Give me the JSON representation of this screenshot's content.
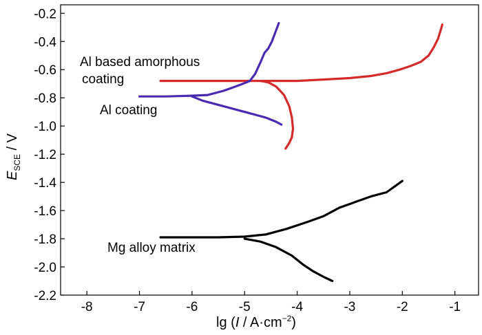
{
  "chart_data": {
    "type": "line",
    "title": "",
    "xlabel": "lg (I / A·cm⁻²)",
    "ylabel": "E_SCE / V",
    "xlabel_parts": {
      "prefix": "lg (",
      "italic": "I",
      "mid": " / A·cm",
      "sup": "−2",
      "suffix": ")"
    },
    "ylabel_parts": {
      "main": "E",
      "sub": "SCE",
      "rest": " / V"
    },
    "xlim": [
      -8.5,
      -0.55
    ],
    "ylim": [
      -2.2,
      -0.14
    ],
    "x_ticks": [
      -8,
      -7,
      -6,
      -5,
      -4,
      -3,
      -2,
      -1
    ],
    "y_ticks": [
      -0.2,
      -0.4,
      -0.6,
      -0.8,
      -1.0,
      -1.2,
      -1.4,
      -1.6,
      -1.8,
      -2.0,
      -2.2
    ],
    "x_tick_labels": [
      "-8",
      "-7",
      "-6",
      "-5",
      "-4",
      "-3",
      "-2",
      "-1"
    ],
    "y_tick_labels": [
      "-0.2",
      "-0.4",
      "-0.6",
      "-0.8",
      "-1.0",
      "-1.2",
      "-1.4",
      "-1.6",
      "-1.8",
      "-2.0",
      "-2.2"
    ],
    "grid": false,
    "annotations": {
      "al_amorphous_line1": "Al based amorphous",
      "al_amorphous_line2": "coating",
      "al_coating": "Al coating",
      "mg_alloy": "Mg alloy matrix"
    },
    "series": [
      {
        "name": "Al based amorphous coating",
        "color": "#d42a2a",
        "x": [
          -6.6,
          -6.0,
          -5.5,
          -5.0,
          -4.7,
          -4.55,
          -4.4,
          -4.25,
          -4.15,
          -4.1,
          -4.08,
          -4.1,
          -4.15,
          -4.22
        ],
        "y": [
          -0.68,
          -0.68,
          -0.68,
          -0.68,
          -0.68,
          -0.69,
          -0.72,
          -0.78,
          -0.86,
          -0.94,
          -1.02,
          -1.08,
          -1.12,
          -1.16
        ],
        "x2": [
          -4.7,
          -4.0,
          -3.5,
          -3.0,
          -2.6,
          -2.3,
          -2.05,
          -1.85,
          -1.65,
          -1.5,
          -1.4,
          -1.32,
          -1.27,
          -1.24
        ],
        "y2": [
          -0.68,
          -0.68,
          -0.67,
          -0.66,
          -0.645,
          -0.625,
          -0.6,
          -0.575,
          -0.545,
          -0.5,
          -0.44,
          -0.38,
          -0.32,
          -0.28
        ]
      },
      {
        "name": "Al coating",
        "color": "#4a2ab0",
        "x": [
          -7.0,
          -6.5,
          -6.0,
          -5.7,
          -5.4,
          -5.1,
          -4.9,
          -4.8,
          -4.7,
          -4.62,
          -4.55,
          -4.48,
          -4.42,
          -4.38,
          -4.35
        ],
        "y": [
          -0.79,
          -0.79,
          -0.785,
          -0.78,
          -0.75,
          -0.71,
          -0.68,
          -0.63,
          -0.55,
          -0.48,
          -0.45,
          -0.4,
          -0.34,
          -0.3,
          -0.27
        ],
        "x2": [
          -6.0,
          -5.8,
          -5.5,
          -5.2,
          -4.9,
          -4.6,
          -4.4,
          -4.3
        ],
        "y2": [
          -0.79,
          -0.82,
          -0.85,
          -0.88,
          -0.91,
          -0.94,
          -0.97,
          -0.99
        ]
      },
      {
        "name": "Mg alloy matrix",
        "color": "#000000",
        "x": [
          -6.6,
          -6.0,
          -5.5,
          -5.0,
          -4.6,
          -4.2,
          -3.8,
          -3.5,
          -3.2,
          -2.9,
          -2.6,
          -2.3,
          -2.0
        ],
        "y": [
          -1.79,
          -1.79,
          -1.79,
          -1.785,
          -1.77,
          -1.73,
          -1.68,
          -1.64,
          -1.58,
          -1.54,
          -1.5,
          -1.47,
          -1.39
        ],
        "x2": [
          -5.0,
          -4.7,
          -4.4,
          -4.1,
          -3.9,
          -3.7,
          -3.5,
          -3.33
        ],
        "y2": [
          -1.8,
          -1.82,
          -1.86,
          -1.92,
          -1.98,
          -2.03,
          -2.07,
          -2.1
        ]
      }
    ]
  }
}
